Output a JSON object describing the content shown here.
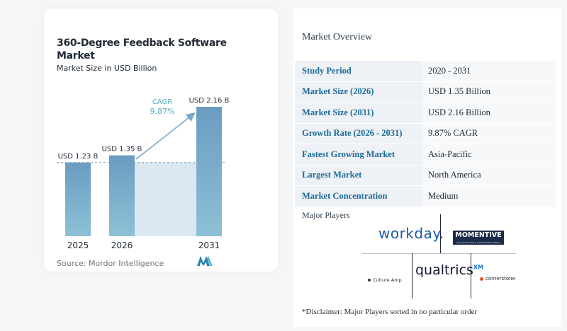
{
  "chart": {
    "title": "360-Degree Feedback Software Market",
    "subtitle": "Market Size in USD Billion",
    "source": "Source: Mordor Intelligence",
    "cagr_label": "CAGR",
    "cagr_value": "9.87%"
  },
  "chart_data": {
    "type": "bar",
    "categories": [
      "2025",
      "2026",
      "2031"
    ],
    "values": [
      1.23,
      1.35,
      2.16
    ],
    "value_labels": [
      "USD 1.23 B",
      "USD 1.35 B",
      "USD 2.16 B"
    ],
    "title": "360-Degree Feedback Software Market",
    "subtitle": "Market Size in USD Billion",
    "ylim": [
      0,
      2.16
    ],
    "grid": false,
    "annotations": [
      "CAGR",
      "9.87%"
    ]
  },
  "colors": {
    "bar_top": "#6a9cc1",
    "bar_bottom": "#8dc1d6",
    "shade": "#dce8f1",
    "arrow": "#7ba7c8",
    "cagr_text": "#5ab0c0",
    "label_blue": "#1b6a98"
  },
  "overview": {
    "title": "Market Overview",
    "rows": [
      {
        "label": "Study Period",
        "value": "2020 - 2031"
      },
      {
        "label": "Market Size (2026)",
        "value": "USD 1.35 Billion"
      },
      {
        "label": "Market Size (2031)",
        "value": "USD 2.16 Billion"
      },
      {
        "label": "Growth Rate (2026 - 2031)",
        "value": "9.87% CAGR"
      },
      {
        "label": "Fastest Growing Market",
        "value": "Asia-Pacific"
      },
      {
        "label": "Largest Market",
        "value": "North America"
      },
      {
        "label": "Market Concentration",
        "value": "Medium"
      }
    ]
  },
  "players": {
    "title": "Major Players",
    "workday": "workday.",
    "momentive": "MOMENTIVE",
    "momentive_tag": "SOLUTIONS FOR A SUSTAINABLE WORLD",
    "qualtrics": "qualtrics",
    "qualtrics_xm": "XM",
    "cultureamp": "Culture Amp",
    "cornerstone": "cornerstone",
    "disclaimer": "*Disclaimer: Major Players sorted in no particular order"
  }
}
